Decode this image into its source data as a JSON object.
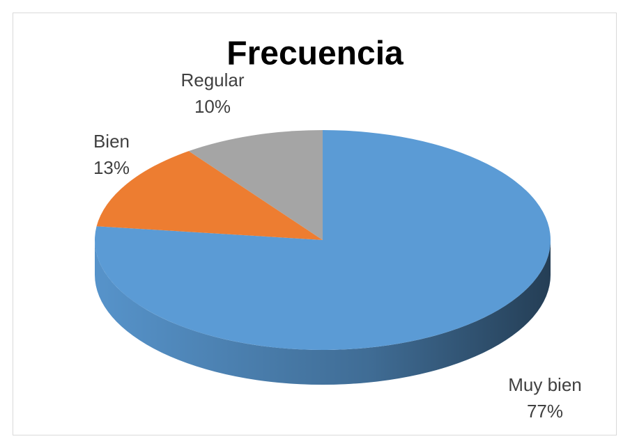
{
  "chart_data": {
    "type": "pie",
    "title": "Frecuencia",
    "categories": [
      "Muy bien",
      "Bien",
      "Regular"
    ],
    "values": [
      77,
      13,
      10
    ],
    "value_labels": [
      "77%",
      "13%",
      "10%"
    ],
    "colors": [
      "#5b9bd5",
      "#ed7d31",
      "#a5a5a5"
    ]
  }
}
